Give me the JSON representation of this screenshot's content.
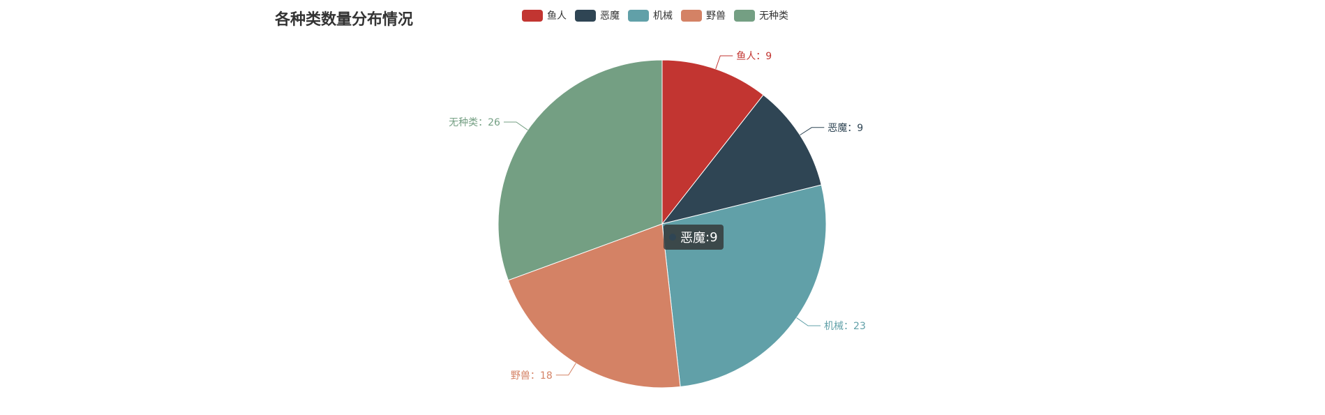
{
  "chart_data": {
    "type": "pie",
    "title": "各种类数量分布情况",
    "categories": [
      "鱼人",
      "恶魔",
      "机械",
      "野兽",
      "无种类"
    ],
    "values": [
      9,
      9,
      23,
      18,
      26
    ],
    "colors": [
      "#c23531",
      "#2f4554",
      "#61a0a8",
      "#d48265",
      "#749f83"
    ],
    "label_separator": "：",
    "legend_position": "top"
  },
  "tooltip": {
    "label": "恶魔",
    "value": "9",
    "separator": ": ",
    "color": "#2f4554"
  }
}
